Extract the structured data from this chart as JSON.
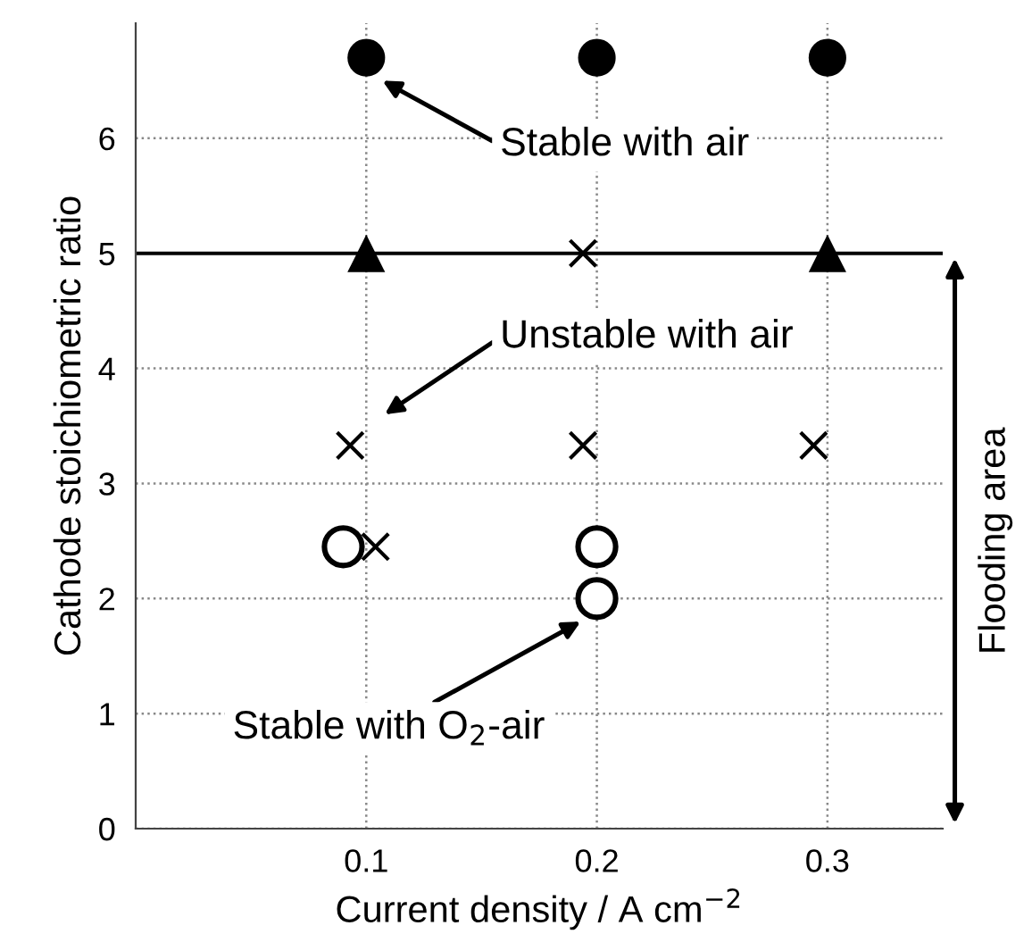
{
  "chart_data": {
    "type": "scatter",
    "xlabel": "Current density / A cm$^{−2}$",
    "ylabel": "Cathode stoichiometric ratio",
    "xlim": [
      0,
      0.35
    ],
    "ylim": [
      0,
      7
    ],
    "xticks": [
      0.1,
      0.2,
      0.3
    ],
    "yticks": [
      0,
      1,
      2,
      3,
      4,
      5,
      6
    ],
    "grid": true,
    "series": [
      {
        "color": "#000000",
        "marker": "circle",
        "x": [
          0.1,
          0.2,
          0.3
        ],
        "values": [
          6.7,
          6.7,
          6.7
        ]
      },
      {
        "color": "#000000",
        "marker": "triangle",
        "x": [
          0.1,
          0.3
        ],
        "values": [
          5,
          5
        ]
      },
      {
        "color": "#000000",
        "marker": "cross",
        "x": [
          0.194,
          0.093,
          0.194,
          0.294,
          0.104
        ],
        "values": [
          5,
          3.33,
          3.33,
          3.33,
          2.45
        ]
      },
      {
        "color": "#000000",
        "colors": [
          "#ffffff",
          "#ffffff",
          "#ffffff"
        ],
        "marker": "circle",
        "x": [
          0.09,
          0.2,
          0.2
        ],
        "values": [
          2.45,
          2.45,
          2.0
        ]
      }
    ],
    "ref_lines": [
      {
        "axis": "y",
        "value": 5,
        "color": "#000000",
        "line_style": "solid"
      }
    ],
    "annotations": [
      "Stable with air",
      "Unstable with air",
      "Stable with O$_{2}$-air",
      "Flooding area"
    ]
  }
}
